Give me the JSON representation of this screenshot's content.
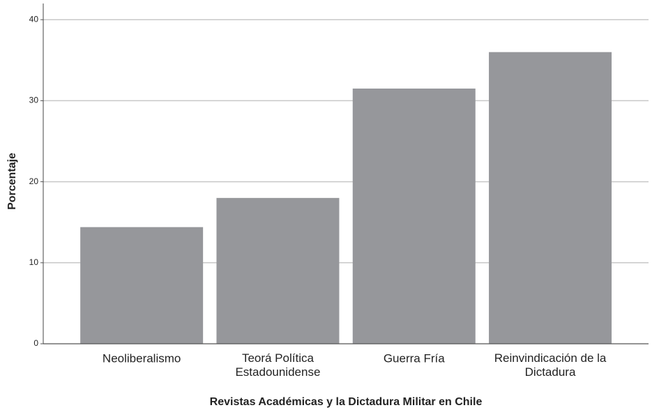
{
  "chart_data": {
    "type": "bar",
    "x_label": "Revistas Académicas y la Dictadura Militar en Chile",
    "y_label": "Porcentaje",
    "categories": [
      "Neoliberalismo",
      "Teorá Política\nEstadounidense",
      "Guerra Fría",
      "Reinvindicación de la\nDictadura"
    ],
    "values": [
      14.4,
      18.0,
      31.5,
      36.0
    ],
    "color": "#96979b",
    "ylim": [
      0,
      42
    ],
    "yticks": [
      0,
      10,
      20,
      30,
      40
    ],
    "grid": true
  }
}
